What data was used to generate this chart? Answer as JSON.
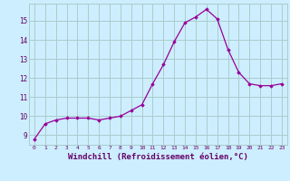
{
  "hours": [
    0,
    1,
    2,
    3,
    4,
    5,
    6,
    7,
    8,
    9,
    10,
    11,
    12,
    13,
    14,
    15,
    16,
    17,
    18,
    19,
    20,
    21,
    22,
    23
  ],
  "values": [
    8.8,
    9.6,
    9.8,
    9.9,
    9.9,
    9.9,
    9.8,
    9.9,
    10.0,
    10.3,
    10.6,
    11.7,
    12.7,
    13.9,
    14.9,
    15.2,
    15.6,
    15.1,
    13.5,
    12.3,
    11.7,
    11.6,
    11.6,
    11.7
  ],
  "line_color": "#990099",
  "marker": "D",
  "marker_size": 1.8,
  "bg_color": "#cceeff",
  "grid_color": "#aacccc",
  "axis_label_color": "#660066",
  "tick_color": "#660066",
  "xlabel": "Windchill (Refroidissement éolien,°C)",
  "xlabel_fontsize": 6.5,
  "ylabel_ticks": [
    9,
    10,
    11,
    12,
    13,
    14,
    15
  ],
  "ylim": [
    8.5,
    15.9
  ],
  "xlim": [
    -0.5,
    23.5
  ]
}
